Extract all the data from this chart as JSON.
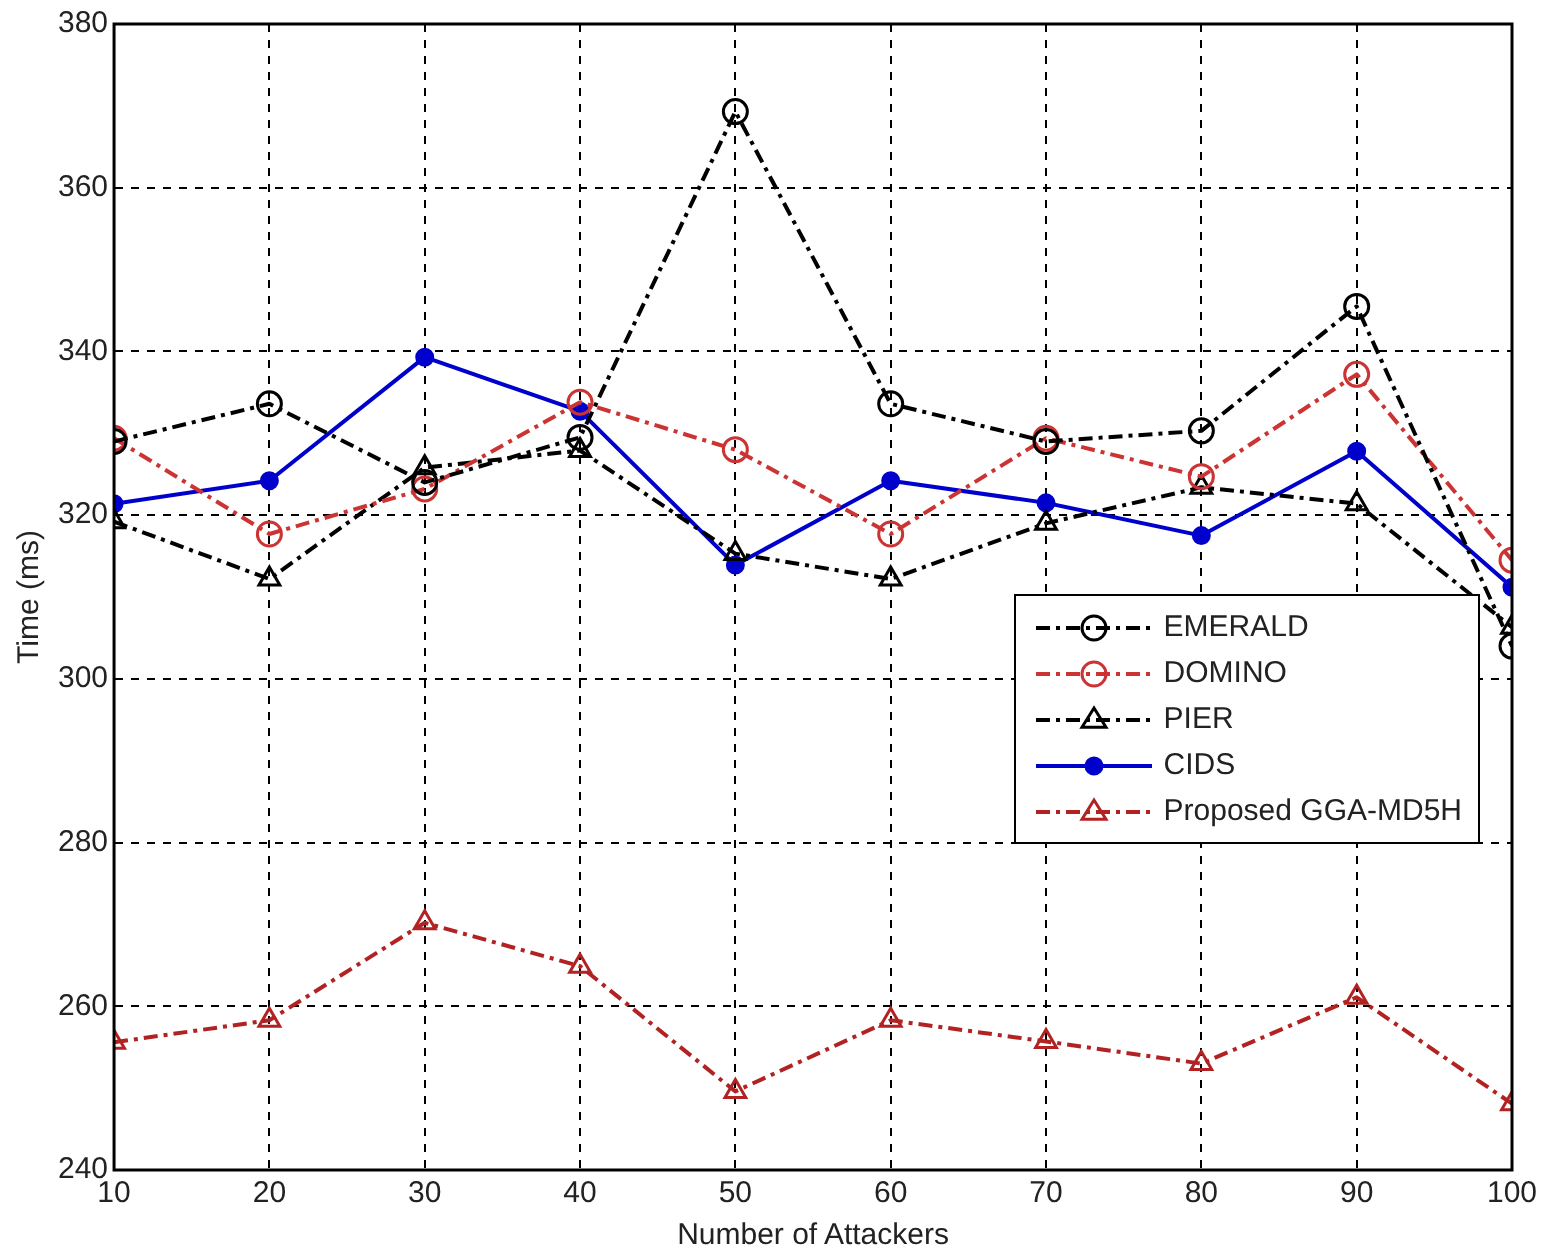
{
  "chart_data": {
    "type": "line",
    "xlabel": "Number of Attackers",
    "ylabel": "Time (ms)",
    "x": [
      10,
      20,
      30,
      40,
      50,
      60,
      70,
      80,
      90,
      100
    ],
    "series": [
      {
        "name": "EMERALD",
        "color": "#000000",
        "line_style": "dashed",
        "marker": "circle",
        "values": [
          329,
          333.6,
          324,
          329.5,
          369.3,
          333.6,
          329,
          330.3,
          345.5,
          304
        ]
      },
      {
        "name": "DOMINO",
        "color": "#cc3333",
        "line_style": "dashed",
        "marker": "circle",
        "values": [
          329.4,
          317.7,
          323.2,
          333.8,
          328,
          317.7,
          329.4,
          324.7,
          337.2,
          314.5
        ]
      },
      {
        "name": "PIER",
        "color": "#000000",
        "line_style": "dashed",
        "marker": "triangle",
        "values": [
          319.2,
          312.2,
          325.8,
          327.9,
          315.3,
          312.2,
          319,
          323.4,
          321.4,
          306.3
        ]
      },
      {
        "name": "CIDS",
        "color": "#0000cc",
        "line_style": "solid",
        "marker": "circle",
        "values": [
          321.4,
          324.2,
          339.3,
          332.7,
          313.9,
          324.2,
          321.5,
          317.5,
          327.8,
          311.2
        ]
      },
      {
        "name": "Proposed GGA-MD5H",
        "color": "#b22222",
        "line_style": "dashed",
        "marker": "triangle",
        "values": [
          255.6,
          258.3,
          270.2,
          264.9,
          249.6,
          258.3,
          255.7,
          253,
          261.1,
          248.1
        ]
      }
    ],
    "xlim": [
      10,
      100
    ],
    "xticks": [
      10,
      20,
      30,
      40,
      50,
      60,
      70,
      80,
      90,
      100
    ],
    "ylim": [
      240,
      380
    ],
    "yticks": [
      240,
      260,
      280,
      300,
      320,
      340,
      360,
      380
    ],
    "grid": true,
    "legend": "right"
  }
}
